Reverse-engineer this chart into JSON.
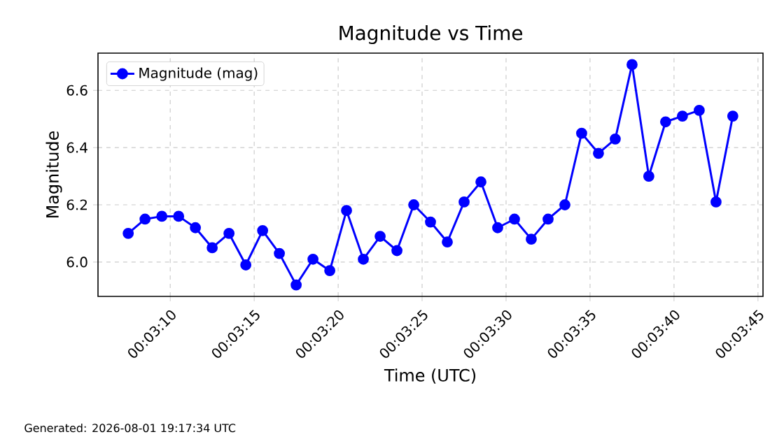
{
  "chart_data": {
    "type": "line",
    "title": "Magnitude vs Time",
    "xlabel": "Time (UTC)",
    "ylabel": "Magnitude",
    "annotations": [
      "Generated: 2026-08-01 19:17:34 UTC"
    ],
    "x": [
      0.052083,
      0.052361,
      0.052639,
      0.052917,
      0.053194,
      0.053472,
      0.05375,
      0.054028,
      0.054306,
      0.054583,
      0.054861,
      0.055139,
      0.055417,
      0.055694,
      0.055972,
      0.05625,
      0.056528,
      0.056806,
      0.057083,
      0.057361,
      0.057639,
      0.057917,
      0.058194,
      0.058472,
      0.05875,
      0.059028,
      0.059306,
      0.059583,
      0.059861,
      0.060139,
      0.060417,
      0.060694,
      0.060972,
      0.06125,
      0.061528,
      0.061806,
      0.062083
    ],
    "series": [
      {
        "name": "Magnitude (mag)",
        "color": "#0000ff",
        "values": [
          6.1,
          6.15,
          6.16,
          6.16,
          6.12,
          6.05,
          6.1,
          5.99,
          6.11,
          6.03,
          5.92,
          6.01,
          5.97,
          6.18,
          6.01,
          6.09,
          6.04,
          6.2,
          6.14,
          6.07,
          6.21,
          6.28,
          6.12,
          6.15,
          6.08,
          6.15,
          6.2,
          6.45,
          6.38,
          6.43,
          6.69,
          6.3,
          6.49,
          6.51,
          6.53,
          6.21,
          6.51
        ]
      }
    ],
    "xlim": [
      0.051583,
      0.062583
    ],
    "xticks": [
      {
        "value": 0.052778,
        "label": "00:03:10"
      },
      {
        "value": 0.054167,
        "label": "00:03:15"
      },
      {
        "value": 0.055556,
        "label": "00:03:20"
      },
      {
        "value": 0.056944,
        "label": "00:03:25"
      },
      {
        "value": 0.058333,
        "label": "00:03:30"
      },
      {
        "value": 0.059722,
        "label": "00:03:35"
      },
      {
        "value": 0.061111,
        "label": "00:03:40"
      },
      {
        "value": 0.0625,
        "label": "00:03:45"
      }
    ],
    "ylim": [
      5.88,
      6.73
    ],
    "yticks": [
      {
        "value": 6,
        "label": "6.0"
      },
      6.2,
      6.4,
      6.6
    ],
    "grid": true,
    "legend": "top left",
    "marker": "circle",
    "line_style": "solid"
  }
}
